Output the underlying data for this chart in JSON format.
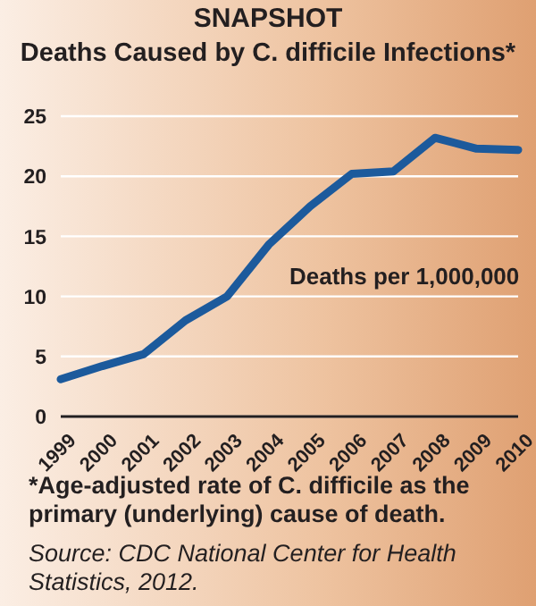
{
  "chart_data": {
    "type": "line",
    "title": "SNAPSHOT",
    "subtitle": "Deaths Caused by C. difficile Infections*",
    "categories": [
      "1999",
      "2000",
      "2001",
      "2002",
      "2003",
      "2004",
      "2005",
      "2006",
      "2007",
      "2008",
      "2009",
      "2010"
    ],
    "series": [
      {
        "name": "Deaths per 1,000,000",
        "color": "#1c5a9c",
        "values": [
          3.1,
          4.2,
          5.2,
          8,
          10,
          14.3,
          17.5,
          20.2,
          20.4,
          23.2,
          22.3,
          22.2
        ]
      }
    ],
    "ylim": [
      0,
      25
    ],
    "yticks": [
      0,
      5,
      10,
      15,
      20,
      25
    ],
    "grid": "y",
    "legend": false,
    "marker": "none",
    "line_style": "solid",
    "annotations": [
      "*Age-adjusted rate of C. difficile as the primary (underlying) cause of death.",
      "Source: CDC National Center for Health Statistics, 2012."
    ]
  }
}
